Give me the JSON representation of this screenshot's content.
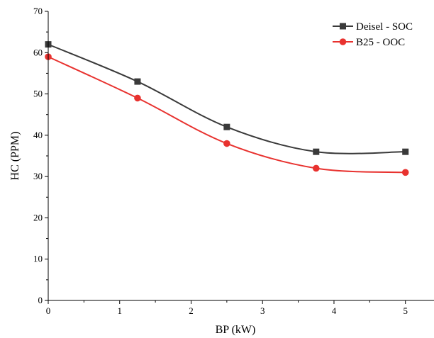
{
  "chart_data": {
    "type": "line",
    "title": "",
    "xlabel": "BP (kW)",
    "ylabel": "HC (PPM)",
    "xlim": [
      0,
      5.4
    ],
    "ylim": [
      0,
      70
    ],
    "x_ticks": [
      0,
      1,
      2,
      3,
      4,
      5
    ],
    "y_ticks": [
      0,
      10,
      20,
      30,
      40,
      50,
      60,
      70
    ],
    "grid": false,
    "legend_position": "top-right",
    "x": [
      0,
      1.25,
      2.5,
      3.75,
      5.0
    ],
    "series": [
      {
        "name": "Deisel - SOC",
        "values": [
          62,
          53,
          42,
          36,
          36
        ],
        "color": "#3a3a3a",
        "marker": "square"
      },
      {
        "name": "B25 - OOC",
        "values": [
          59,
          49,
          38,
          32,
          31
        ],
        "color": "#e8322f",
        "marker": "circle"
      }
    ]
  }
}
